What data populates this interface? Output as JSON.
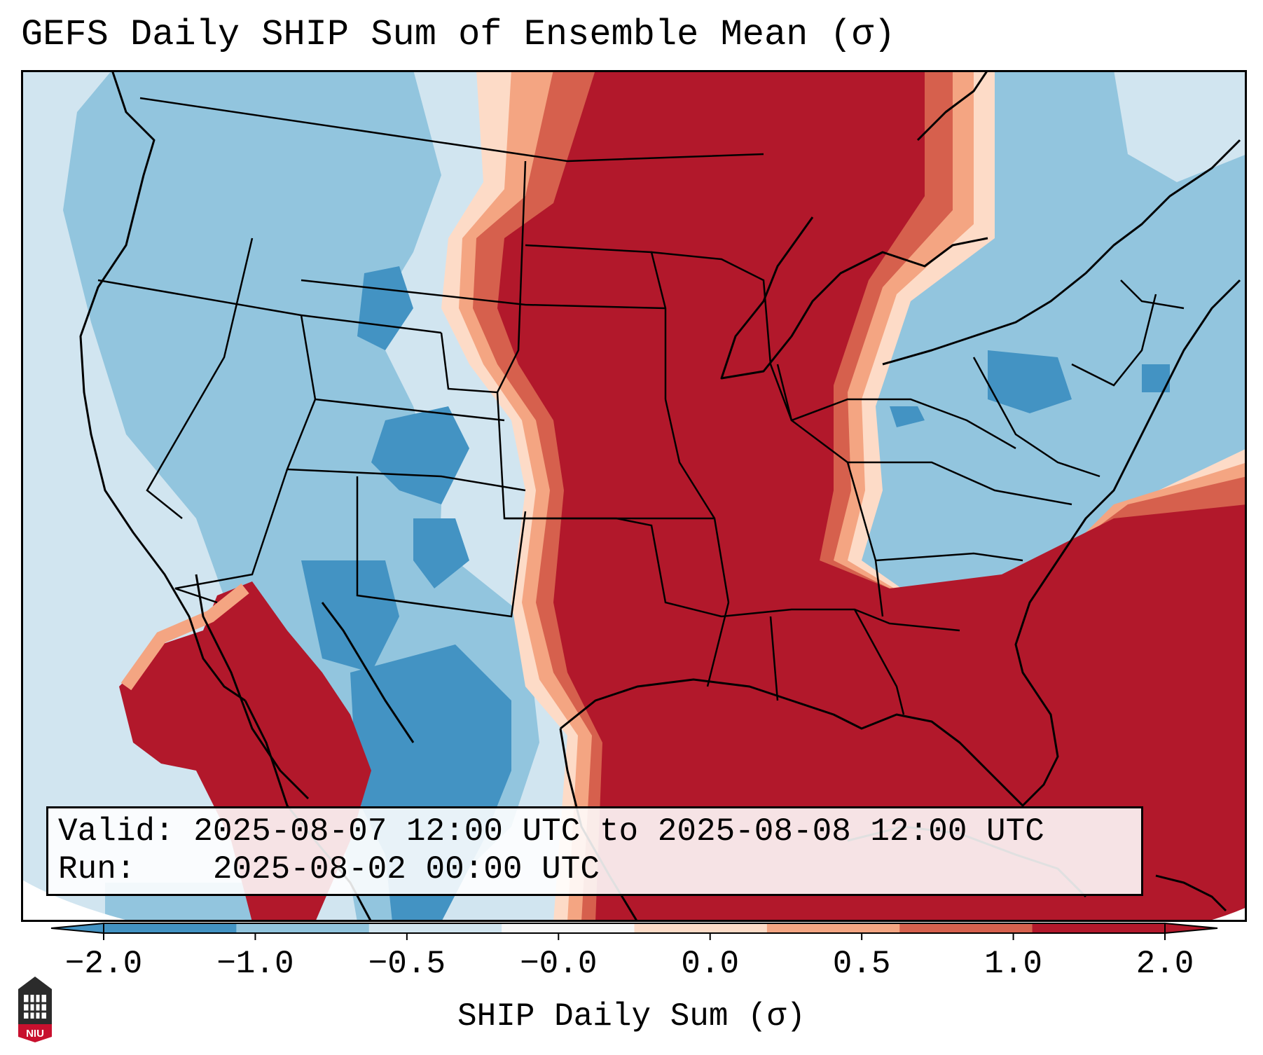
{
  "title": "GEFS Daily SHIP Sum of Ensemble Mean (σ)",
  "info": {
    "valid_label": "Valid:",
    "valid_value": "2025-08-07 12:00 UTC to 2025-08-08 12:00 UTC",
    "run_label": "Run:",
    "run_value": "2025-08-02 00:00 UTC"
  },
  "colorbar": {
    "label": "SHIP Daily Sum (σ)",
    "ticks": [
      "−2.0",
      "−1.0",
      "−0.5",
      "−0.0",
      "0.0",
      "0.5",
      "1.0",
      "2.0"
    ],
    "colors": [
      "#4393c3",
      "#92c5de",
      "#d1e5f0",
      "#f7f7f7",
      "#fddbc7",
      "#f4a582",
      "#d6604d",
      "#b2182b"
    ],
    "extend": "both"
  },
  "legend_colors": {
    "strong_negative": "#4393c3",
    "negative": "#92c5de",
    "weak_negative": "#d1e5f0",
    "weak_positive": "#fddbc7",
    "positive": "#f4a582",
    "moderate_positive": "#d6604d",
    "strong_positive": "#b2182b"
  },
  "logo": {
    "text": "NIU",
    "icon": "university-building-icon"
  }
}
